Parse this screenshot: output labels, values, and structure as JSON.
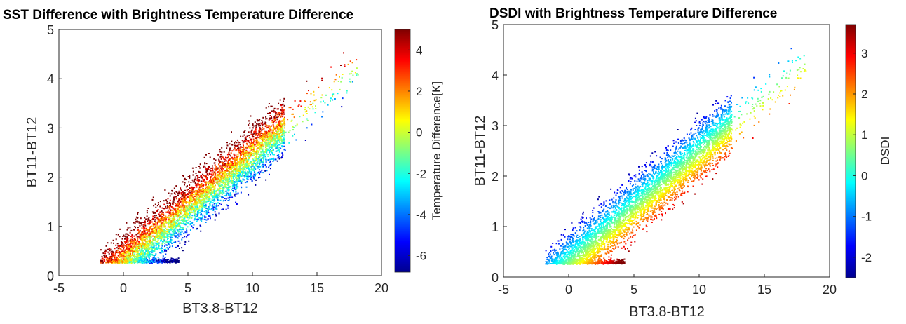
{
  "colormap": "jet",
  "chart_data": [
    {
      "type": "scatter",
      "title": "SST Difference with Brightness Temperature Difference",
      "xlabel": "BT3.8-BT12",
      "ylabel": "BT11-BT12",
      "xlim": [
        -5,
        20
      ],
      "ylim": [
        0,
        5
      ],
      "xticks": [
        "-5",
        "0",
        "5",
        "10",
        "15",
        "20"
      ],
      "yticks": [
        "0",
        "1",
        "2",
        "3",
        "4",
        "5"
      ],
      "color_variable": "SST difference",
      "colorbar": {
        "label": "Temperature Difference[K]",
        "range": [
          -6.8,
          5.0
        ],
        "ticks": [
          "-6",
          "-4",
          "-2",
          "0",
          "2",
          "4"
        ]
      },
      "points_approx": {
        "x_range": [
          -2,
          18.3
        ],
        "y_range": [
          0.25,
          4.55
        ],
        "trend": "y ≈ 0.28 + 0.22·x, width ≈ 0.55",
        "color_pattern": "high (red/orange) above trend line, low (blue) below, green/cyan centre"
      }
    },
    {
      "type": "scatter",
      "title": "DSDI with Brightness Temperature Difference",
      "xlabel": "BT3.8-BT12",
      "ylabel": "BT11-BT12",
      "xlim": [
        -5,
        20
      ],
      "ylim": [
        0,
        5
      ],
      "xticks": [
        "-5",
        "0",
        "5",
        "10",
        "15",
        "20"
      ],
      "yticks": [
        "0",
        "1",
        "2",
        "3",
        "4",
        "5"
      ],
      "color_variable": "DSDI",
      "colorbar": {
        "label": "DSDI",
        "range": [
          -2.5,
          3.7
        ],
        "ticks": [
          "-2",
          "-1",
          "0",
          "1",
          "2",
          "3"
        ]
      },
      "points_approx": {
        "x_range": [
          -1.6,
          18.3
        ],
        "y_range": [
          0.25,
          4.55
        ],
        "trend": "same distribution as left panel",
        "color_pattern": "smooth gradient: blue/cyan above trend, yellow/red below trend"
      }
    }
  ]
}
